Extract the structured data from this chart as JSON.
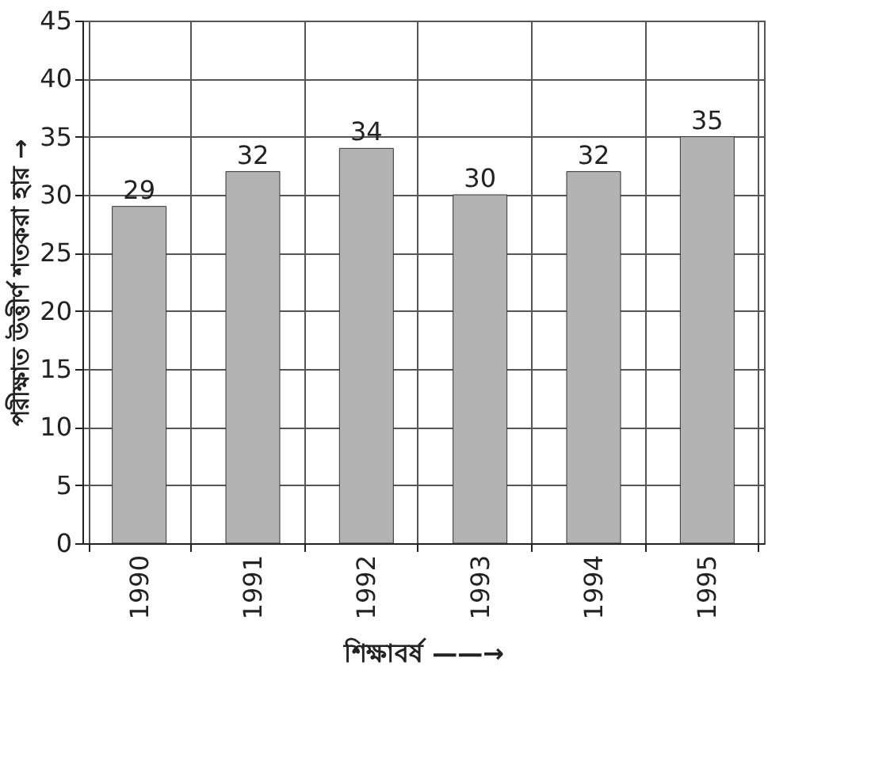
{
  "chart_data": {
    "type": "bar",
    "xlabel": "শিক্ষাবর্ষ ——→",
    "ylabel": "পরীক্ষাত উত্তীর্ণ শতকরা হার →",
    "categories": [
      "1990",
      "1991",
      "1992",
      "1993",
      "1994",
      "1995"
    ],
    "values": [
      29,
      32,
      34,
      30,
      32,
      35
    ],
    "color": "#b3b3b3",
    "ylim": [
      0,
      45
    ],
    "yticks": [
      0,
      5,
      10,
      15,
      20,
      25,
      30,
      35,
      40,
      45
    ],
    "grid": true,
    "data_labels": true
  }
}
